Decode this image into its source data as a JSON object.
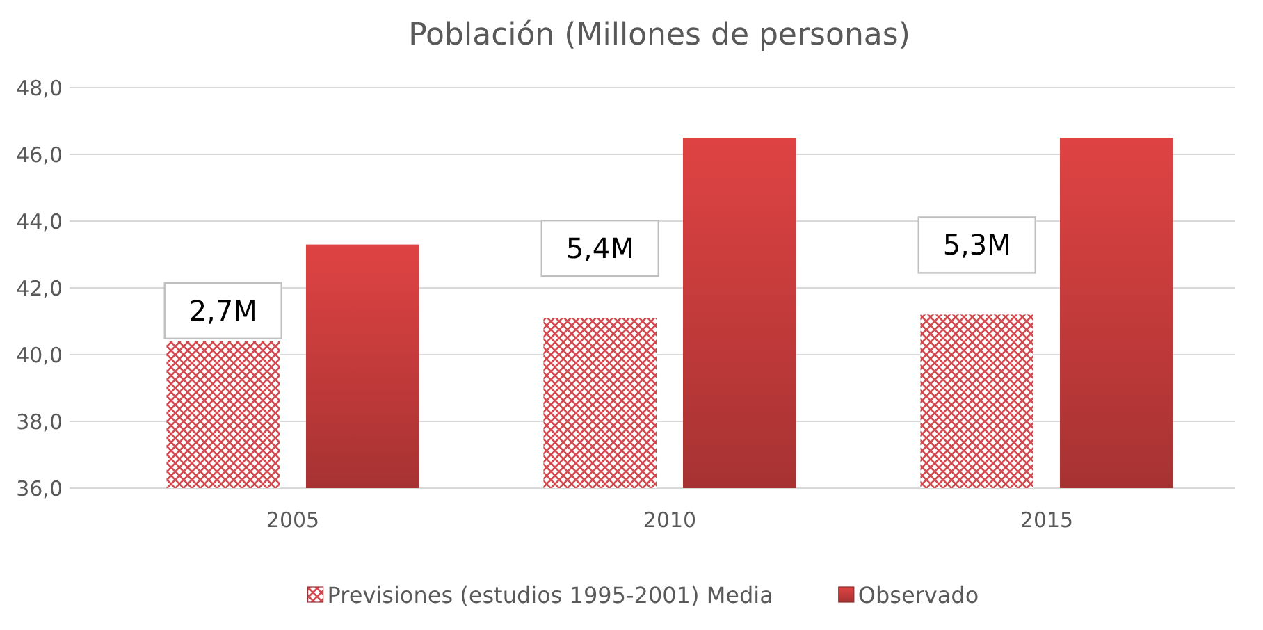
{
  "chart_data": {
    "type": "bar",
    "title": "Población (Millones de personas)",
    "categories": [
      "2005",
      "2010",
      "2015"
    ],
    "series": [
      {
        "name": "Previsiones (estudios 1995-2001) Media",
        "color": "#d24a4f",
        "values": [
          40.4,
          41.1,
          41.2
        ]
      },
      {
        "name": "Observado",
        "color": "#c83c3c",
        "values": [
          43.3,
          46.5,
          46.5
        ]
      }
    ],
    "ylim": [
      36,
      48
    ],
    "yticks": [
      {
        "value": 36,
        "label": "36,0"
      },
      {
        "value": 38,
        "label": "38,0"
      },
      {
        "value": 40,
        "label": "40,0"
      },
      {
        "value": 42,
        "label": "42,0"
      },
      {
        "value": 44,
        "label": "44,0"
      },
      {
        "value": 46,
        "label": "46,0"
      },
      {
        "value": 48,
        "label": "48,0"
      }
    ],
    "grid": "y",
    "legend": "bottom",
    "annotations": [
      "2,7M",
      "5,4M",
      "5,3M"
    ]
  }
}
